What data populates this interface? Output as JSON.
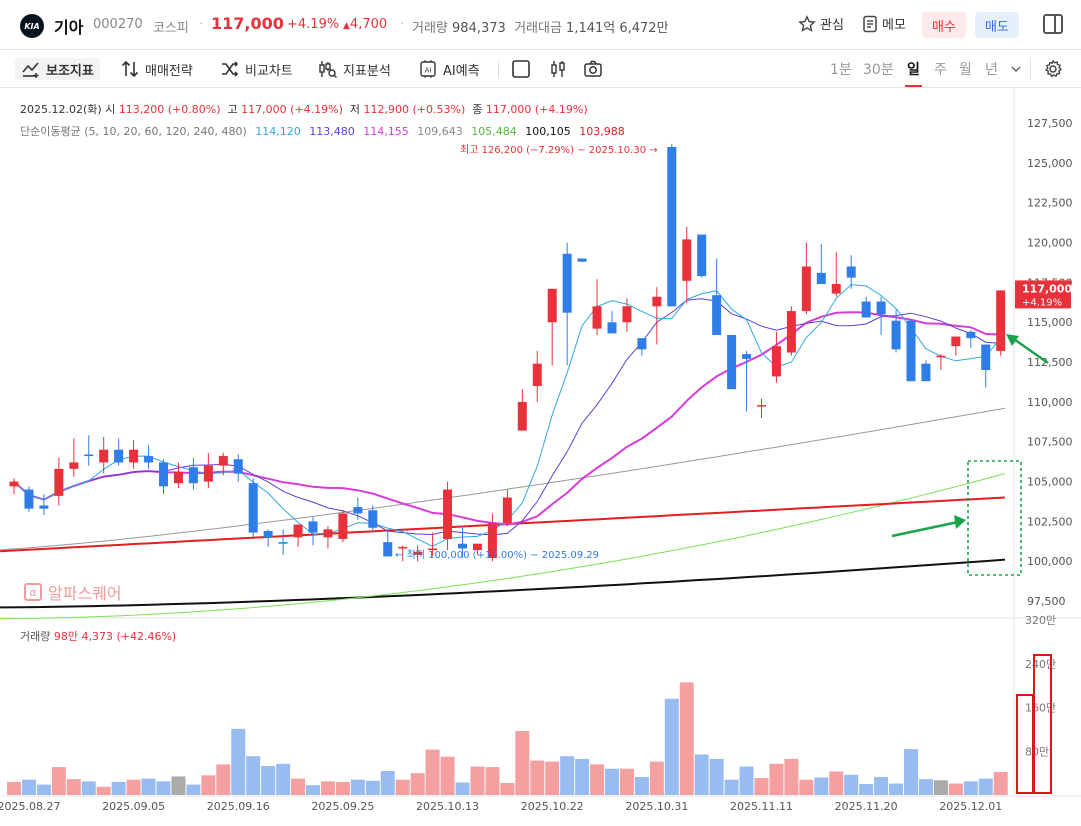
{
  "header": {
    "logo_text": "KIA",
    "name": "기아",
    "code": "000270",
    "exchange": "코스피",
    "price": "117,000",
    "change_pct": "+4.19%",
    "change_abs": "4,700",
    "volume_label": "거래량",
    "volume": "984,373",
    "amount_label": "거래대금",
    "amount": "1,141억 6,472만",
    "watch_label": "관심",
    "memo_label": "메모",
    "buy_label": "매수",
    "sell_label": "매도"
  },
  "toolbar": {
    "tools": [
      "보조지표",
      "매매전략",
      "비교차트",
      "지표분석",
      "AI예측"
    ],
    "periods": [
      "1분",
      "30분",
      "일",
      "주",
      "월",
      "년"
    ],
    "active_period": "일"
  },
  "info": {
    "date": "2025.12.02(화)",
    "open_label": "시",
    "open": "113,200 (+0.80%)",
    "high_label": "고",
    "high": "117,000 (+4.19%)",
    "low_label": "저",
    "low": "112,900 (+0.53%)",
    "close_label": "종",
    "close": "117,000 (+4.19%)",
    "ma_label": "단순이동평균 (5, 10, 20, 60, 120, 240, 480)",
    "ma_values": [
      "114,120",
      "113,480",
      "114,155",
      "109,643",
      "105,484",
      "100,105",
      "103,988"
    ],
    "ma_colors": [
      "#2ea8e0",
      "#5b3fd6",
      "#d93ad9",
      "#999999",
      "#66cc44",
      "#111111",
      "#e02020"
    ]
  },
  "volume_info": {
    "label": "거래량",
    "value": "98만 4,373 (+42.46%)"
  },
  "watermark": "알파스퀘어",
  "annotations": {
    "high": "최고 126,200 (−7.29%) − 2025.10.30",
    "low": "최저 100,000 (+17.00%) − 2025.09.29"
  },
  "price_tag": {
    "price": "117,000",
    "pct": "+4.19%"
  },
  "colors": {
    "up": "#e8313a",
    "down": "#2f7de8",
    "up_vol": "#f4a0a0",
    "down_vol": "#98bcf0"
  },
  "chart_data": {
    "type": "candlestick",
    "y_ticks": [
      "127,500",
      "125,000",
      "122,500",
      "120,000",
      "117,500",
      "115,000",
      "112,500",
      "110,000",
      "107,500",
      "105,000",
      "102,500",
      "100,000",
      "97,500"
    ],
    "ylim": [
      96500,
      129200
    ],
    "vol_ticks": [
      "320만",
      "240만",
      "160만",
      "80만"
    ],
    "vol_max": 3200000,
    "x_labels": [
      "2025.08.27",
      "2025.09.05",
      "2025.09.16",
      "2025.09.25",
      "2025.10.13",
      "2025.10.22",
      "2025.10.31",
      "2025.11.11",
      "2025.11.20",
      "2025.12.01"
    ],
    "candles": [
      [
        104700,
        105200,
        104200,
        105000
      ],
      [
        104500,
        104700,
        103100,
        103300
      ],
      [
        103500,
        104200,
        102900,
        103300
      ],
      [
        104100,
        106500,
        103500,
        105800
      ],
      [
        105800,
        107700,
        105300,
        106200
      ],
      [
        106700,
        107900,
        106000,
        106600
      ],
      [
        106200,
        107800,
        105500,
        107000
      ],
      [
        107000,
        107700,
        106000,
        106200
      ],
      [
        106200,
        107600,
        105800,
        107000
      ],
      [
        106600,
        107300,
        105800,
        106200
      ],
      [
        106200,
        106400,
        104200,
        104700
      ],
      [
        104900,
        106200,
        104600,
        105600
      ],
      [
        105900,
        106500,
        104500,
        104900
      ],
      [
        105000,
        106800,
        104600,
        106000
      ],
      [
        106000,
        106800,
        105400,
        106600
      ],
      [
        106400,
        106700,
        105000,
        105500
      ],
      [
        104900,
        105200,
        101500,
        101800
      ],
      [
        101900,
        102000,
        100900,
        101500
      ],
      [
        101200,
        102000,
        100400,
        101100
      ],
      [
        101500,
        102300,
        100900,
        102300
      ],
      [
        102500,
        102800,
        101000,
        101800
      ],
      [
        101500,
        102200,
        100800,
        102000
      ],
      [
        101400,
        103200,
        101200,
        103000
      ],
      [
        103400,
        104000,
        102600,
        103000
      ],
      [
        103200,
        103500,
        101800,
        102100
      ],
      [
        101200,
        101900,
        100300,
        100300
      ],
      [
        100800,
        101000,
        100000,
        100900
      ],
      [
        100400,
        101000,
        100000,
        100600
      ],
      [
        100700,
        101800,
        100300,
        100800
      ],
      [
        101400,
        105000,
        100700,
        104500
      ],
      [
        101100,
        102200,
        100200,
        100800
      ],
      [
        100700,
        101100,
        100400,
        101100
      ],
      [
        100200,
        103000,
        100000,
        102400
      ],
      [
        102400,
        104500,
        102200,
        104000
      ],
      [
        108200,
        110800,
        108200,
        110000
      ],
      [
        111000,
        113200,
        110000,
        112400
      ],
      [
        115000,
        117100,
        112300,
        117100
      ],
      [
        119300,
        120000,
        112300,
        115600
      ],
      [
        119000,
        119000,
        118800,
        118800
      ],
      [
        114600,
        117700,
        114200,
        116000
      ],
      [
        115000,
        115700,
        114300,
        114300
      ],
      [
        115000,
        116500,
        114400,
        116000
      ],
      [
        114000,
        114000,
        112900,
        113300
      ],
      [
        116000,
        117200,
        113600,
        116600
      ],
      [
        126000,
        126200,
        116000,
        116000
      ],
      [
        117600,
        121000,
        116200,
        120200
      ],
      [
        120500,
        120500,
        117800,
        117900
      ],
      [
        116700,
        119000,
        114200,
        114200
      ],
      [
        114200,
        114200,
        110800,
        110800
      ],
      [
        113000,
        113200,
        109400,
        112700
      ],
      [
        109800,
        110200,
        109000,
        109800
      ],
      [
        111600,
        114400,
        111200,
        113500
      ],
      [
        113100,
        116000,
        112900,
        115700
      ],
      [
        115700,
        120000,
        115500,
        118500
      ],
      [
        118100,
        119900,
        117400,
        117400
      ],
      [
        116800,
        119400,
        116600,
        117400
      ],
      [
        118500,
        119200,
        117100,
        117800
      ],
      [
        116300,
        116600,
        115300,
        115300
      ],
      [
        116300,
        116600,
        114200,
        115500
      ],
      [
        115100,
        115800,
        113100,
        113300
      ],
      [
        115100,
        115200,
        111300,
        111300
      ],
      [
        112400,
        112600,
        111300,
        111300
      ],
      [
        112900,
        113000,
        112000,
        112900
      ],
      [
        113500,
        114100,
        112900,
        114100
      ],
      [
        114400,
        114500,
        113400,
        114000
      ],
      [
        113600,
        113600,
        110900,
        112000
      ],
      [
        113200,
        117000,
        112900,
        117000
      ]
    ],
    "volumes": [
      240000,
      280000,
      190000,
      510000,
      290000,
      250000,
      150000,
      240000,
      280000,
      300000,
      250000,
      340000,
      190000,
      360000,
      560000,
      1210000,
      710000,
      530000,
      570000,
      300000,
      180000,
      250000,
      240000,
      280000,
      260000,
      440000,
      280000,
      400000,
      830000,
      700000,
      230000,
      520000,
      510000,
      220000,
      1170000,
      630000,
      610000,
      710000,
      660000,
      560000,
      480000,
      480000,
      330000,
      610000,
      1760000,
      2060000,
      740000,
      660000,
      280000,
      520000,
      310000,
      570000,
      660000,
      280000,
      320000,
      430000,
      370000,
      200000,
      330000,
      210000,
      840000,
      290000,
      270000,
      210000,
      250000,
      300000,
      420000
    ]
  }
}
